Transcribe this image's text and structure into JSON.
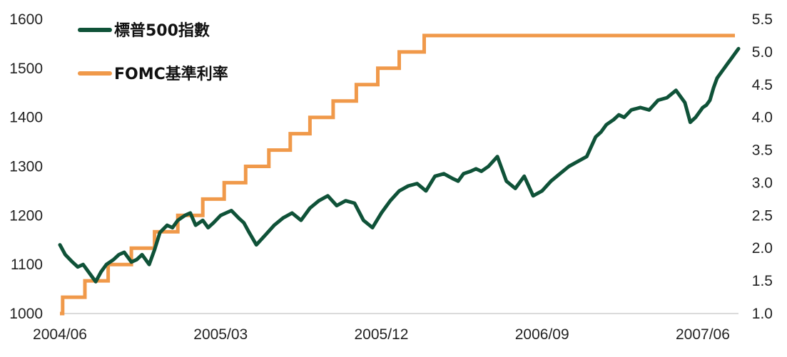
{
  "chart_data": {
    "type": "line",
    "title": "",
    "xlabel": "",
    "ylabel_left": "",
    "ylabel_right": "",
    "grid": false,
    "legend_position": "top-left",
    "x_range": [
      "2004-06",
      "2007-08"
    ],
    "x_tick_labels": [
      "2004/06",
      "2005/03",
      "2005/12",
      "2006/09",
      "2007/06"
    ],
    "x_tick_months": [
      0,
      9,
      18,
      27,
      36
    ],
    "y_left_range": [
      1000,
      1600
    ],
    "y_left_ticks": [
      1000,
      1100,
      1200,
      1300,
      1400,
      1500,
      1600
    ],
    "y_right_range": [
      1.0,
      5.5
    ],
    "y_right_ticks": [
      "1.0",
      "1.5",
      "2.0",
      "2.5",
      "3.0",
      "3.5",
      "4.0",
      "4.5",
      "5.0",
      "5.5"
    ],
    "series": [
      {
        "name": "標普500指數",
        "axis": "left",
        "color": "#0f5238",
        "x_months": [
          0,
          0.3,
          0.7,
          1.0,
          1.3,
          1.7,
          2.0,
          2.3,
          2.6,
          3.0,
          3.3,
          3.6,
          4.0,
          4.3,
          4.6,
          5.0,
          5.3,
          5.6,
          6.0,
          6.3,
          6.6,
          7.0,
          7.3,
          7.6,
          8.0,
          8.3,
          8.6,
          9.0,
          9.3,
          9.6,
          10.0,
          10.3,
          10.6,
          11.0,
          11.5,
          12.0,
          12.5,
          13.0,
          13.5,
          14.0,
          14.5,
          15.0,
          15.5,
          16.0,
          16.5,
          17.0,
          17.5,
          18.0,
          18.5,
          19.0,
          19.5,
          20.0,
          20.5,
          21.0,
          21.5,
          22.0,
          22.3,
          22.6,
          23.0,
          23.3,
          23.6,
          24.0,
          24.5,
          25.0,
          25.5,
          26.0,
          26.5,
          27.0,
          27.5,
          28.0,
          28.5,
          29.0,
          29.5,
          30.0,
          30.3,
          30.6,
          31.0,
          31.3,
          31.6,
          32.0,
          32.5,
          33.0,
          33.5,
          34.0,
          34.5,
          35.0,
          35.3,
          35.6,
          36.0,
          36.2,
          36.4,
          36.6,
          36.8,
          37.0,
          37.2,
          37.4,
          37.6,
          37.8,
          38.0
        ],
        "values": [
          1140,
          1120,
          1105,
          1095,
          1100,
          1080,
          1065,
          1085,
          1100,
          1110,
          1120,
          1125,
          1105,
          1110,
          1120,
          1100,
          1130,
          1165,
          1180,
          1175,
          1190,
          1200,
          1205,
          1180,
          1190,
          1175,
          1185,
          1200,
          1205,
          1210,
          1195,
          1185,
          1165,
          1140,
          1160,
          1180,
          1195,
          1205,
          1190,
          1215,
          1230,
          1240,
          1220,
          1230,
          1225,
          1190,
          1175,
          1205,
          1230,
          1250,
          1260,
          1265,
          1250,
          1280,
          1285,
          1275,
          1270,
          1285,
          1290,
          1295,
          1290,
          1300,
          1320,
          1270,
          1255,
          1280,
          1240,
          1250,
          1270,
          1285,
          1300,
          1310,
          1320,
          1360,
          1370,
          1385,
          1395,
          1405,
          1400,
          1415,
          1420,
          1415,
          1435,
          1440,
          1455,
          1430,
          1390,
          1400,
          1420,
          1425,
          1435,
          1460,
          1480,
          1490,
          1500,
          1510,
          1520,
          1530,
          1540
        ]
      },
      {
        "name": "FOMC基準利率",
        "axis": "right",
        "color": "#f0994a",
        "step": true,
        "x_months": [
          0,
          0.15,
          1.4,
          2.7,
          4.0,
          5.3,
          6.6,
          8.0,
          9.2,
          10.4,
          11.7,
          12.9,
          14.0,
          15.3,
          16.6,
          17.8,
          19.0,
          20.4,
          21.6,
          23.0,
          24.0,
          25.4,
          37.8
        ],
        "values": [
          1.0,
          1.25,
          1.5,
          1.75,
          2.0,
          2.25,
          2.5,
          2.75,
          3.0,
          3.25,
          3.5,
          3.75,
          4.0,
          4.25,
          4.5,
          4.75,
          5.0,
          5.25,
          5.25,
          5.25,
          5.25,
          5.25,
          5.25
        ]
      }
    ]
  },
  "legend": {
    "items": [
      {
        "label": "標普500指數",
        "color": "#0f5238"
      },
      {
        "label": "FOMC基準利率",
        "color": "#f0994a"
      }
    ]
  }
}
